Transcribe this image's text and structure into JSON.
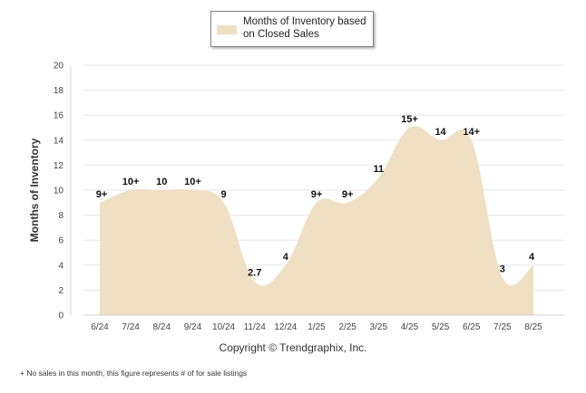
{
  "chart_data": {
    "type": "area",
    "title": "",
    "legend": {
      "entries": [
        "Months of Inventory based on Closed Sales"
      ],
      "placement": "top-center"
    },
    "xlabel": "",
    "ylabel": "Months of Inventory",
    "ylim": [
      0,
      20
    ],
    "yticks": [
      "0",
      "2",
      "4",
      "6",
      "8",
      "10",
      "12",
      "14",
      "16",
      "18",
      "20"
    ],
    "grid": true,
    "categories": [
      "6/24",
      "7/24",
      "8/24",
      "9/24",
      "10/24",
      "11/24",
      "12/24",
      "1/25",
      "2/25",
      "3/25",
      "4/25",
      "5/25",
      "6/25",
      "7/25",
      "8/25"
    ],
    "series": [
      {
        "name": "Months of Inventory based on Closed Sales",
        "values": [
          9,
          10,
          10,
          10,
          9,
          2.7,
          4,
          9,
          9,
          11,
          15,
          14,
          14,
          3,
          4
        ],
        "labels": [
          "9+",
          "10+",
          "10",
          "10+",
          "9",
          "2.7",
          "4",
          "9+",
          "9+",
          "11",
          "15+",
          "14",
          "14+",
          "3",
          "4"
        ],
        "color": "#efdfc3"
      }
    ]
  },
  "copyright": "Copyright © Trendgraphix, Inc.",
  "footnote": {
    "marker": "+",
    "text": "No sales in this month, this figure represents # of for sale listings"
  }
}
